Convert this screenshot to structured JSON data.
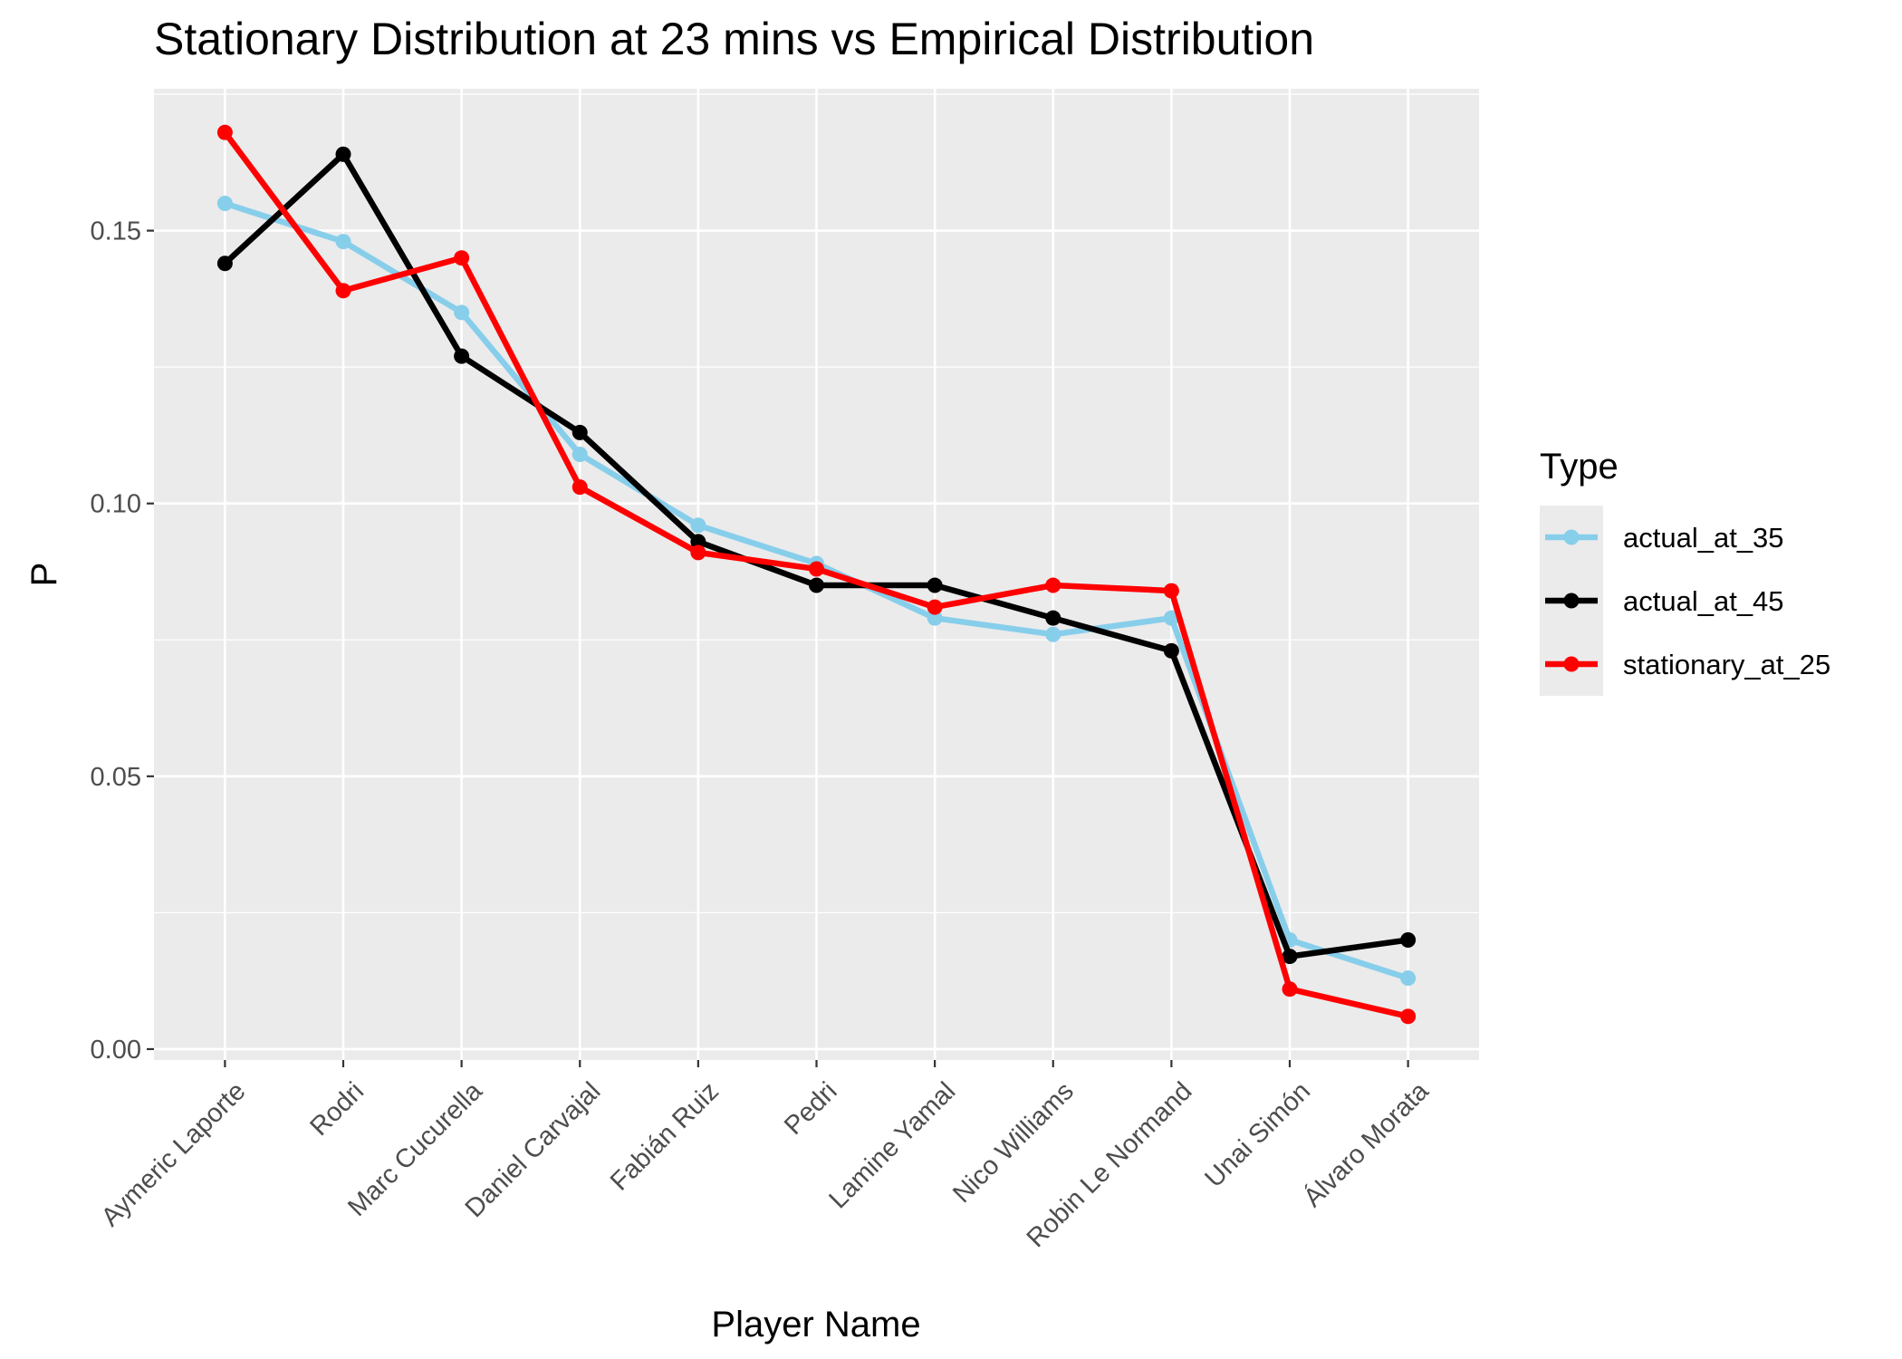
{
  "chart_data": {
    "type": "line",
    "title": "Stationary Distribution at 23 mins vs Empirical Distribution",
    "xlabel": "Player Name",
    "ylabel": "P",
    "categories": [
      "Aymeric Laporte",
      "Rodri",
      "Marc Cucurella",
      "Daniel Carvajal",
      "Fabián Ruiz",
      "Pedri",
      "Lamine Yamal",
      "Nico Williams",
      "Robin Le Normand",
      "Unai Simón",
      "Álvaro Morata"
    ],
    "ylim": [
      -0.002,
      0.176
    ],
    "yticks": [
      0.0,
      0.05,
      0.1,
      0.15
    ],
    "ytick_labels": [
      "0.00",
      "0.05",
      "0.10",
      "0.15"
    ],
    "grid": true,
    "legend": {
      "title": "Type",
      "position": "right"
    },
    "series": [
      {
        "name": "actual_at_35",
        "color": "#87CEEB",
        "values": [
          0.155,
          0.148,
          0.135,
          0.109,
          0.096,
          0.089,
          0.079,
          0.076,
          0.079,
          0.02,
          0.013
        ]
      },
      {
        "name": "actual_at_45",
        "color": "#000000",
        "values": [
          0.144,
          0.164,
          0.127,
          0.113,
          0.093,
          0.085,
          0.085,
          0.079,
          0.073,
          0.017,
          0.02
        ]
      },
      {
        "name": "stationary_at_25",
        "color": "#FF0000",
        "values": [
          0.168,
          0.139,
          0.145,
          0.103,
          0.091,
          0.088,
          0.081,
          0.085,
          0.084,
          0.011,
          0.006
        ]
      }
    ]
  }
}
